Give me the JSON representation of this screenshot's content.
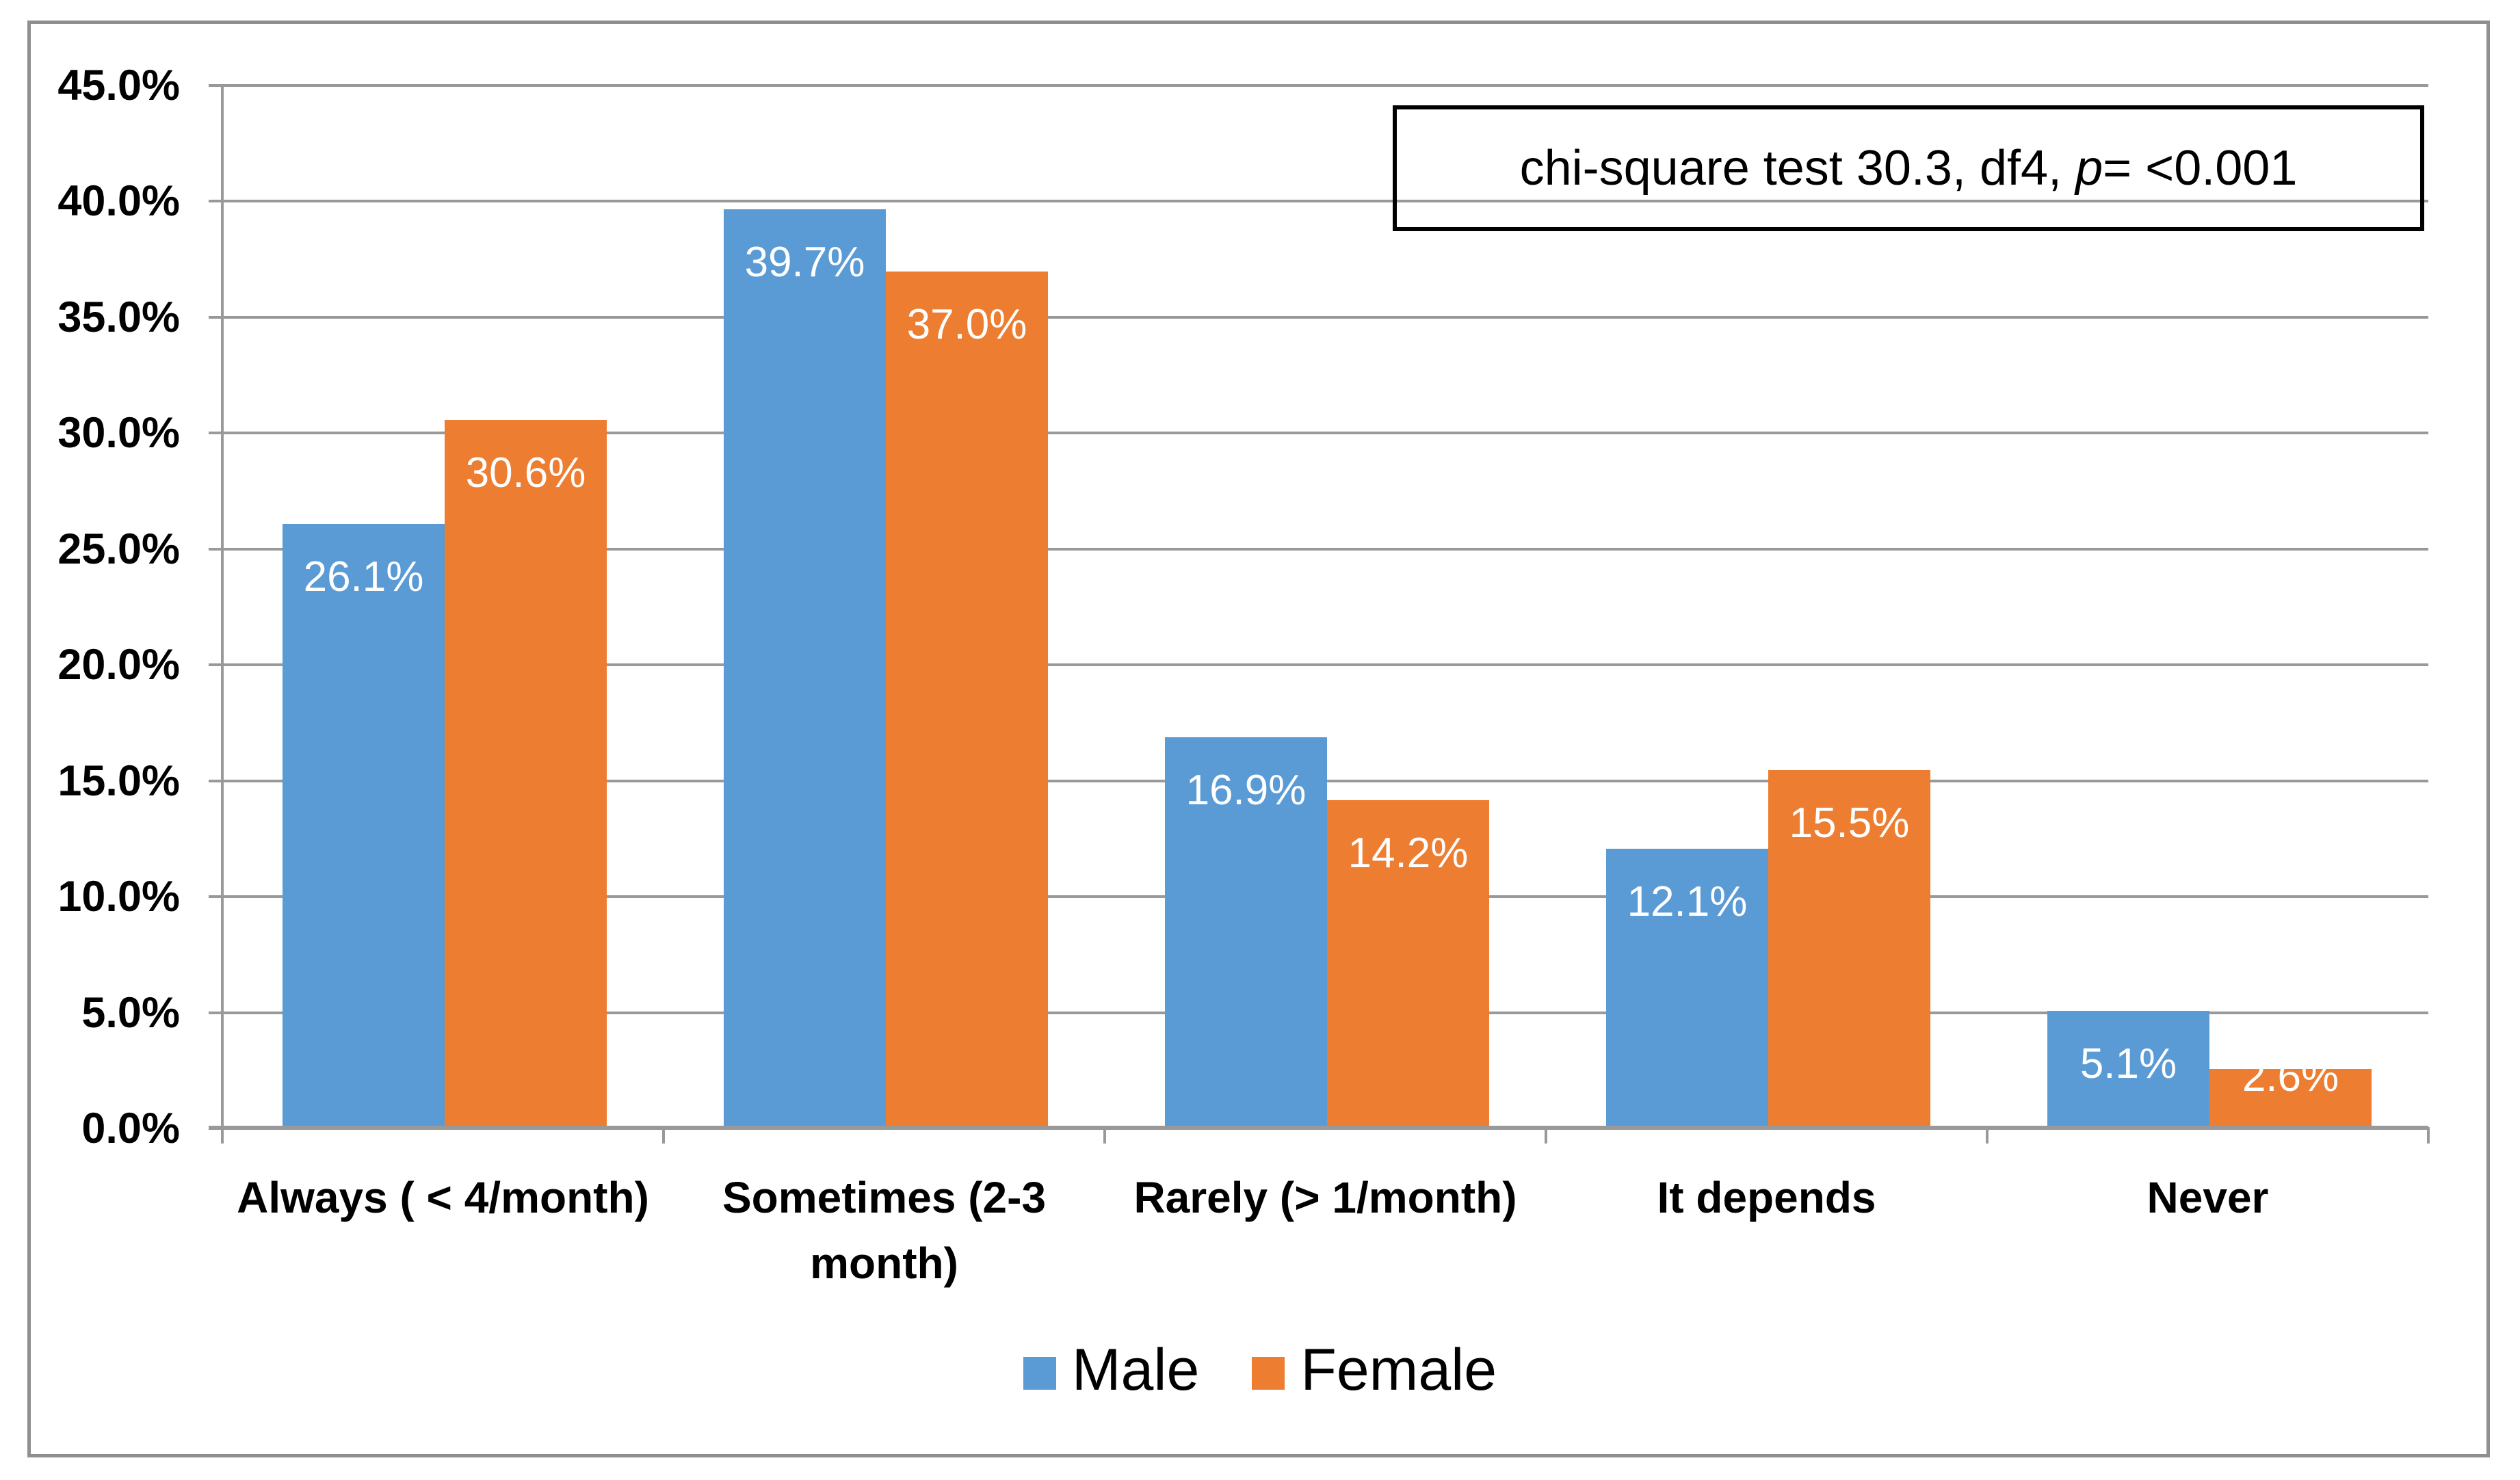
{
  "chart_data": {
    "type": "bar",
    "title": "",
    "xlabel": "",
    "ylabel": "",
    "categories": [
      "Always ( < 4/month)",
      "Sometimes (2-3 month)",
      "Rarely (> 1/month)",
      "It depends",
      "Never"
    ],
    "category_label_lines": [
      [
        "Always ( < 4/month)"
      ],
      [
        "Sometimes (2-3",
        "month)"
      ],
      [
        "Rarely (> 1/month)"
      ],
      [
        "It depends"
      ],
      [
        "Never"
      ]
    ],
    "series": [
      {
        "name": "Male",
        "color": "#5B9BD5",
        "values": [
          26.1,
          39.7,
          16.9,
          12.1,
          5.1
        ],
        "labels": [
          "26.1%",
          "39.7%",
          "16.9%",
          "12.1%",
          "5.1%"
        ]
      },
      {
        "name": "Female",
        "color": "#ED7D31",
        "values": [
          30.6,
          37.0,
          14.2,
          15.5,
          2.6
        ],
        "labels": [
          "30.6%",
          "37.0%",
          "14.2%",
          "15.5%",
          "2.6%"
        ]
      }
    ],
    "y_axis": {
      "min": 0,
      "max": 45,
      "step": 5,
      "tick_labels": [
        "0.0%",
        "5.0%",
        "10.0%",
        "15.0%",
        "20.0%",
        "25.0%",
        "30.0%",
        "35.0%",
        "40.0%",
        "45.0%"
      ]
    },
    "ylim": [
      0,
      45
    ],
    "grid": true,
    "legend_position": "bottom",
    "legend": [
      "Male",
      "Female"
    ],
    "annotation": {
      "text": "chi-square test 30.3, df4, p= <0.001",
      "prefix": "chi-square test 30.3, df4, ",
      "p_symbol": "p",
      "suffix": "= <0.001"
    },
    "colors": {
      "male_bar": "#5B9BD5",
      "female_bar": "#ED7D31",
      "gridline": "#999999",
      "outer_border": "#8F8F8F",
      "annotation_border": "#000000",
      "data_label_text": "#FFFFFF",
      "axis_text": "#000000"
    }
  }
}
